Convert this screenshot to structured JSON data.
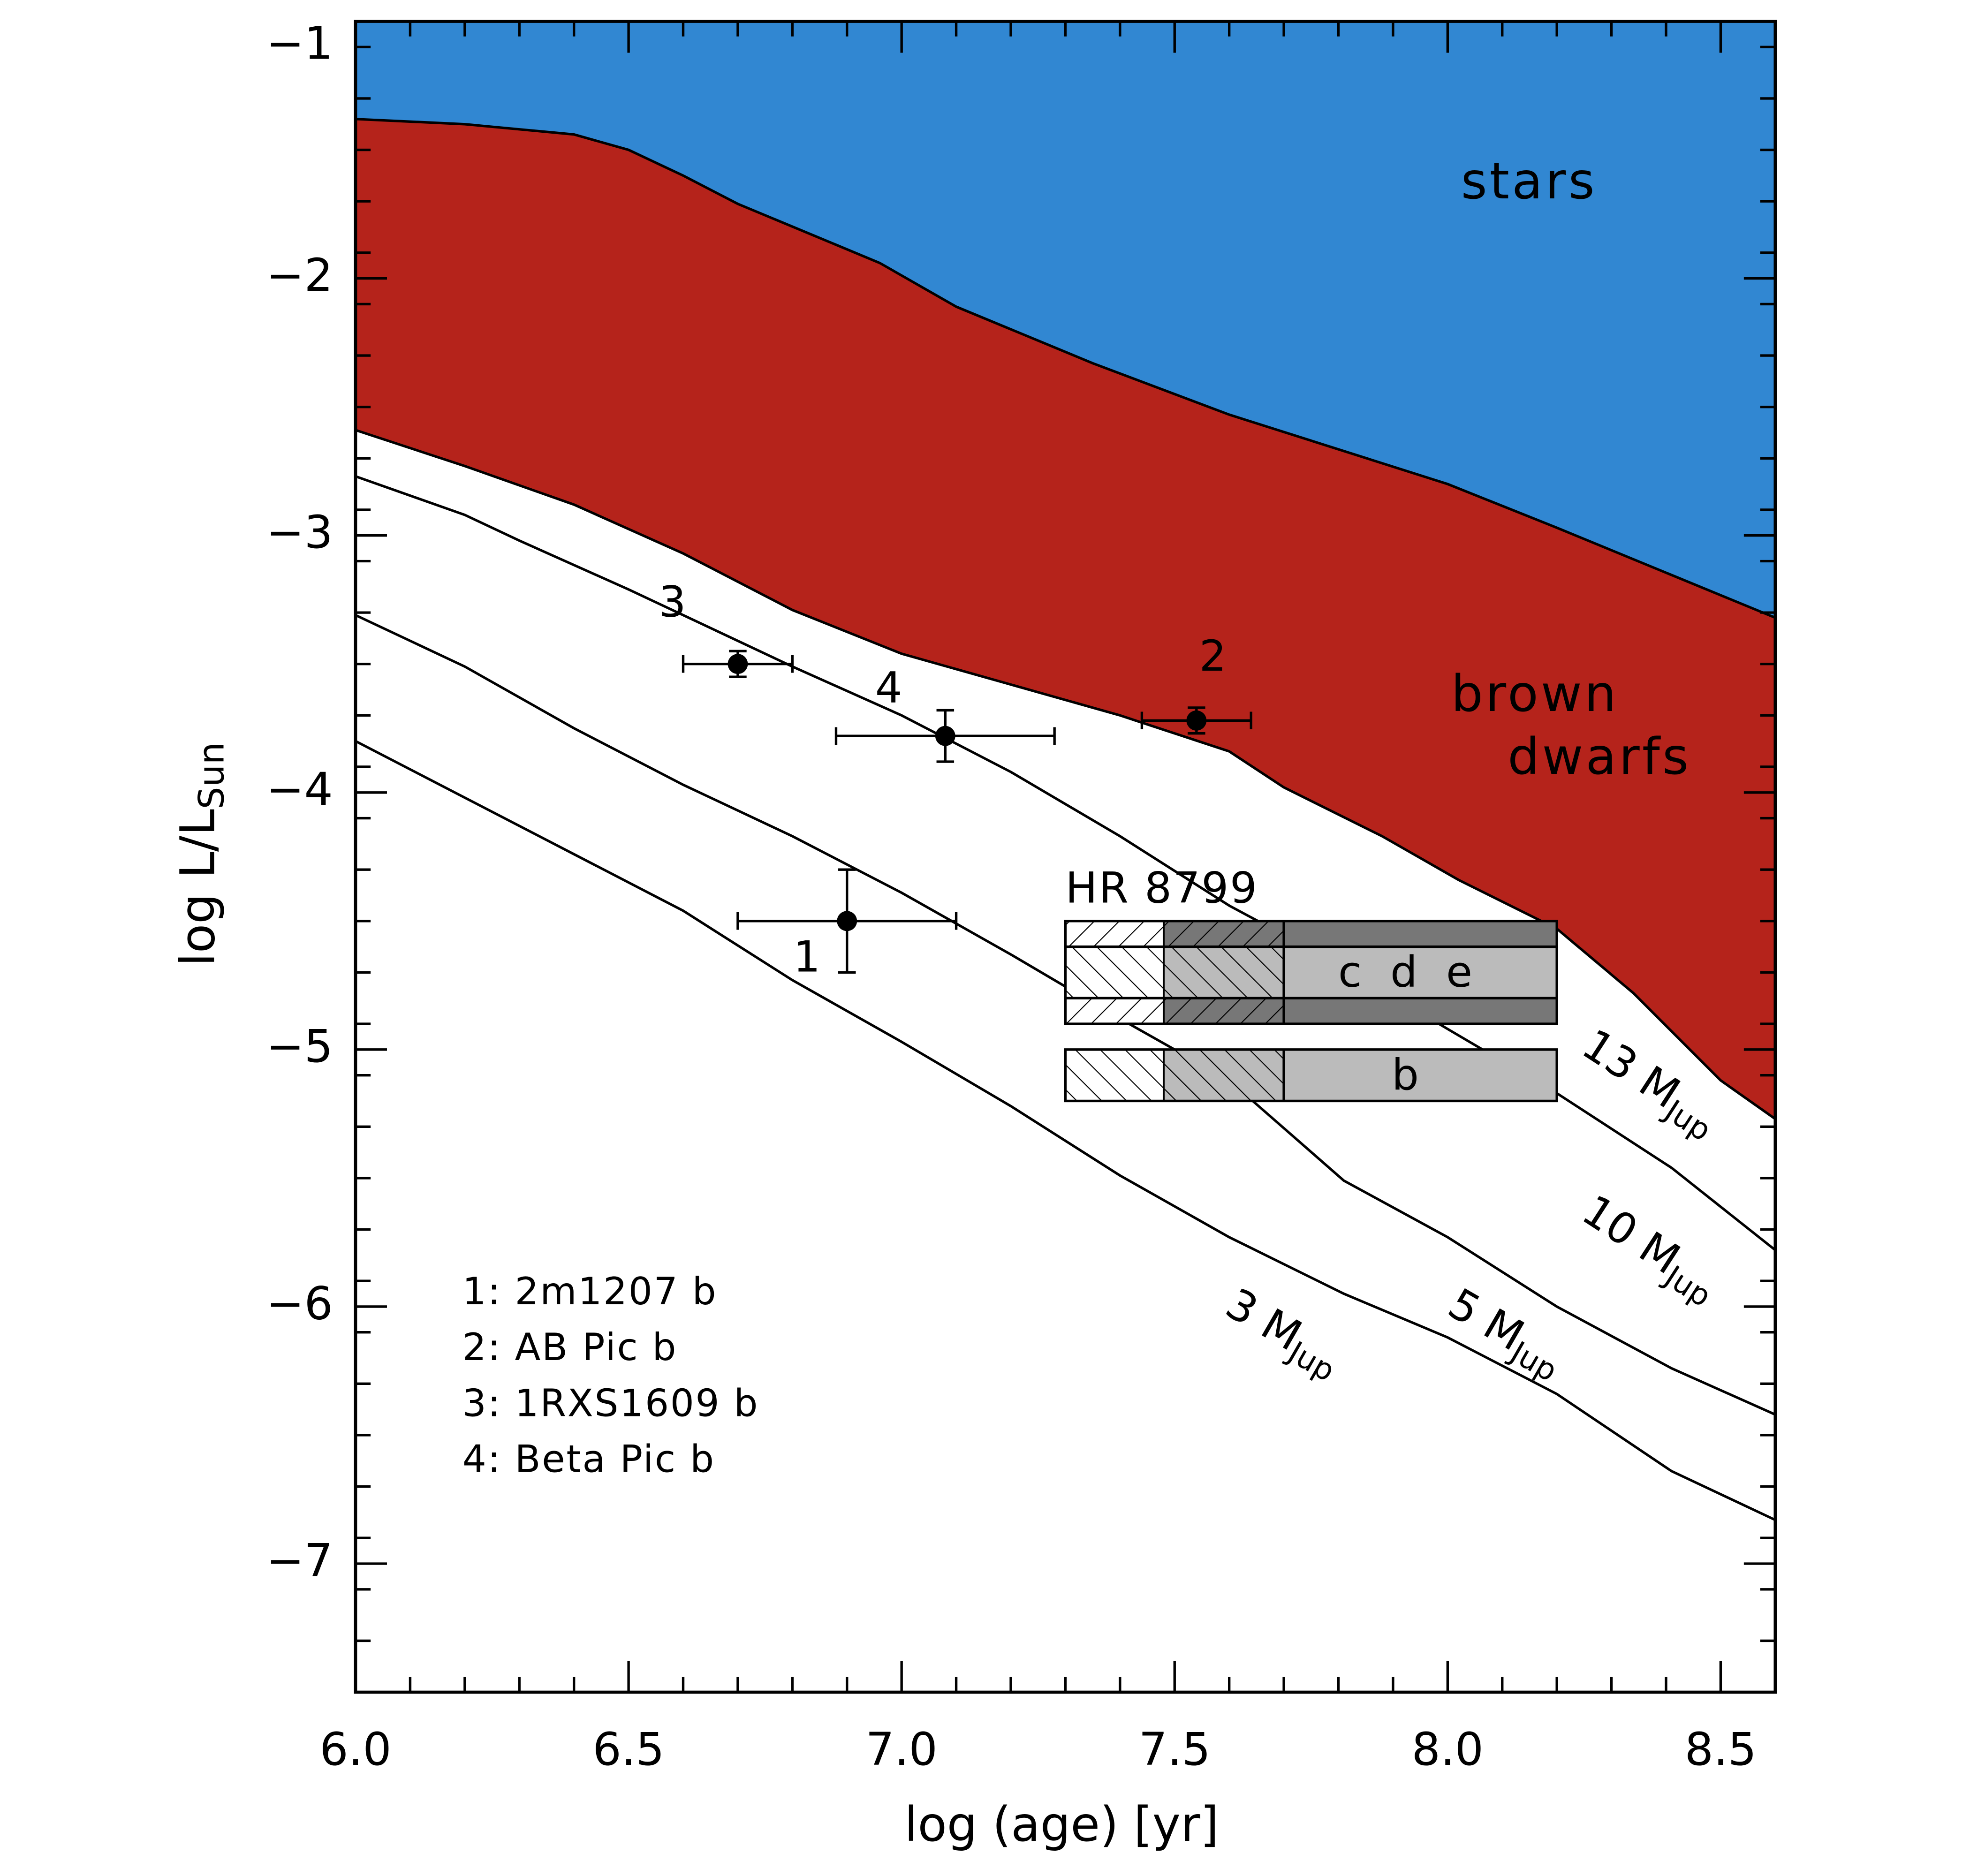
{
  "chart_data": {
    "type": "scatter",
    "xlabel": "log (age) [yr]",
    "ylabel": "log L/L",
    "ylabel_sub": "Sun",
    "xlim": [
      6.0,
      8.6
    ],
    "ylim": [
      -7.5,
      -1
    ],
    "xticks": [
      {
        "value": 6,
        "label": "6.0"
      },
      {
        "value": 6.5,
        "label": "6.5"
      },
      {
        "value": 7,
        "label": "7.0"
      },
      {
        "value": 7.5,
        "label": "7.5"
      },
      {
        "value": 8,
        "label": "8.0"
      },
      {
        "value": 8.5,
        "label": "8.5"
      }
    ],
    "yticks": [
      {
        "value": -1,
        "label": "−1"
      },
      {
        "value": -2,
        "label": "−2"
      },
      {
        "value": -3,
        "label": "−3"
      },
      {
        "value": -4,
        "label": "−4"
      },
      {
        "value": -5,
        "label": "−5"
      },
      {
        "value": -6,
        "label": "−6"
      },
      {
        "value": -7,
        "label": "−7"
      }
    ],
    "xminor": 0.1,
    "yminor": 0.2,
    "regions": [
      {
        "name": "stars",
        "color": "#3187d2",
        "x": [
          6.0,
          6.2,
          6.3,
          6.4,
          6.5,
          6.6,
          6.7,
          6.96,
          7.1,
          7.35,
          7.6,
          8.0,
          8.2,
          8.6
        ],
        "y": [
          -1.38,
          -1.4,
          -1.42,
          -1.44,
          -1.5,
          -1.6,
          -1.71,
          -1.94,
          -2.11,
          -2.33,
          -2.53,
          -2.8,
          -2.97,
          -3.32
        ]
      },
      {
        "name": [
          "brown",
          "dwarfs"
        ],
        "color": "#b5231b"
      }
    ],
    "tracks": [
      {
        "label": "13 M",
        "label_sub": "Jup",
        "x": [
          6.0,
          6.2,
          6.4,
          6.6,
          6.8,
          7.0,
          7.2,
          7.4,
          7.6,
          7.7,
          7.88,
          8.02,
          8.2,
          8.34,
          8.5,
          8.6
        ],
        "y": [
          -2.59,
          -2.73,
          -2.88,
          -3.07,
          -3.29,
          -3.46,
          -3.58,
          -3.7,
          -3.84,
          -3.98,
          -4.17,
          -4.34,
          -4.53,
          -4.78,
          -5.12,
          -5.27
        ]
      },
      {
        "label": "10 M",
        "label_sub": "Jup",
        "x": [
          6.0,
          6.2,
          6.3,
          6.5,
          6.6,
          6.8,
          7.0,
          7.2,
          7.4,
          7.6,
          7.81,
          8.0,
          8.2,
          8.41,
          8.6
        ],
        "y": [
          -2.77,
          -2.92,
          -3.02,
          -3.21,
          -3.31,
          -3.51,
          -3.7,
          -3.92,
          -4.17,
          -4.44,
          -4.68,
          -4.92,
          -5.17,
          -5.46,
          -5.78
        ]
      },
      {
        "label": "5 M",
        "label_sub": "Jup",
        "x": [
          6.0,
          6.2,
          6.4,
          6.6,
          6.8,
          7.0,
          7.2,
          7.4,
          7.6,
          7.81,
          8.0,
          8.2,
          8.41,
          8.6
        ],
        "y": [
          -3.31,
          -3.51,
          -3.75,
          -3.97,
          -4.17,
          -4.39,
          -4.63,
          -4.88,
          -5.12,
          -5.51,
          -5.73,
          -6.0,
          -6.24,
          -6.42
        ]
      },
      {
        "label": "3 M",
        "label_sub": "Jup",
        "x": [
          6.0,
          6.2,
          6.4,
          6.6,
          6.8,
          7.0,
          7.2,
          7.4,
          7.6,
          7.81,
          8.0,
          8.2,
          8.41,
          8.6
        ],
        "y": [
          -3.8,
          -4.02,
          -4.24,
          -4.46,
          -4.73,
          -4.97,
          -5.22,
          -5.49,
          -5.73,
          -5.95,
          -6.12,
          -6.34,
          -6.64,
          -6.83
        ]
      }
    ],
    "points": [
      {
        "label": "1",
        "x": 6.9,
        "y": -4.5,
        "xerr": 0.2,
        "yerr": 0.2
      },
      {
        "label": "2",
        "x": 7.54,
        "y": -3.72,
        "xerr": 0.1,
        "yerr": 0.05
      },
      {
        "label": "3",
        "x": 6.7,
        "y": -3.5,
        "xerr": 0.1,
        "yerr": 0.05
      },
      {
        "label": "4",
        "x": 7.08,
        "y": -3.78,
        "xerr": 0.2,
        "yerr": 0.1
      }
    ],
    "legend": [
      "1: 2m1207 b",
      "2: AB Pic b",
      "3: 1RXS1609 b",
      "4: Beta Pic b"
    ],
    "hr8799": {
      "label": "HR 8799",
      "age": [
        7.3,
        7.48,
        7.7,
        8.2
      ],
      "boxes": [
        {
          "label": "c d e",
          "y": -4.7,
          "err_inner": 0.1,
          "err_outer": 0.2
        },
        {
          "label": "b",
          "y": -5.1,
          "err_inner": 0.1
        }
      ]
    }
  }
}
